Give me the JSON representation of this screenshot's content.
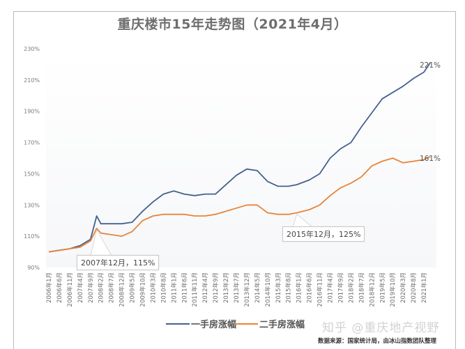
{
  "title": "重庆楼市15年走势图（2021年4月）",
  "colors": {
    "new_home": "#44618f",
    "second_hand": "#e8843a",
    "grid": "#eeeeee",
    "frame": "#b8b8b8"
  },
  "legend": {
    "new_home_label": "一手房涨幅",
    "second_hand_label": "二手房涨幅"
  },
  "annotations": {
    "peak_2007": "2007年12月，115%",
    "low_2015": "2015年12月，125%",
    "end_new_home": "221%",
    "end_second_hand": "161%"
  },
  "watermark": "知乎 @重庆地产视野",
  "source": "数据来源：国家统计局，由冰山指数团队整理",
  "chart_data": {
    "type": "line",
    "title": "重庆楼市15年走势图（2021年4月）",
    "xlabel": "",
    "ylabel": "",
    "ylim": [
      90,
      230
    ],
    "yticks": [
      "90%",
      "110%",
      "130%",
      "150%",
      "170%",
      "190%",
      "210%",
      "230%"
    ],
    "grid": false,
    "legend_position": "bottom",
    "x_tick_labels": [
      "2006年1月",
      "2006年6月",
      "2006年11月",
      "2007年4月",
      "2007年9月",
      "2008年2月",
      "2008年7月",
      "2008年12月",
      "2009年5月",
      "2009年10月",
      "2010年3月",
      "2010年8月",
      "2011年1月",
      "2011年6月",
      "2011年11月",
      "2012年4月",
      "2012年9月",
      "2013年2月",
      "2013年7月",
      "2013年12月",
      "2014年5月",
      "2014年10月",
      "2015年3月",
      "2015年8月",
      "2016年1月",
      "2016年6月",
      "2016年11月",
      "2017年4月",
      "2017年9月",
      "2018年2月",
      "2018年7月",
      "2018年12月",
      "2019年5月",
      "2019年10月",
      "2020年3月",
      "2020年8月",
      "2021年1月"
    ],
    "x": [
      "2006-01",
      "2006-06",
      "2006-11",
      "2007-04",
      "2007-09",
      "2007-12",
      "2008-02",
      "2008-07",
      "2008-12",
      "2009-05",
      "2009-10",
      "2010-03",
      "2010-08",
      "2011-01",
      "2011-06",
      "2011-11",
      "2012-04",
      "2012-09",
      "2013-02",
      "2013-07",
      "2013-12",
      "2014-05",
      "2014-10",
      "2015-03",
      "2015-08",
      "2015-12",
      "2016-06",
      "2016-11",
      "2017-04",
      "2017-09",
      "2018-02",
      "2018-07",
      "2018-12",
      "2019-05",
      "2019-10",
      "2020-03",
      "2020-08",
      "2021-01",
      "2021-04"
    ],
    "series": [
      {
        "name": "一手房涨幅",
        "values": [
          100,
          101,
          102,
          104,
          108,
          123,
          118,
          118,
          118,
          119,
          126,
          132,
          137,
          139,
          137,
          136,
          137,
          137,
          143,
          149,
          153,
          152,
          145,
          142,
          142,
          143,
          146,
          150,
          160,
          166,
          170,
          180,
          189,
          198,
          202,
          206,
          211,
          215,
          221
        ]
      },
      {
        "name": "二手房涨幅",
        "values": [
          100,
          101,
          102,
          103,
          107,
          115,
          112,
          111,
          110,
          113,
          120,
          123,
          124,
          124,
          124,
          123,
          123,
          124,
          126,
          128,
          130,
          130,
          125,
          124,
          124,
          125,
          127,
          130,
          136,
          141,
          144,
          148,
          155,
          158,
          160,
          157,
          158,
          159,
          161
        ]
      }
    ],
    "annotations": [
      {
        "text": "2007年12月，115%",
        "x": "2007-12",
        "series": "二手房涨幅",
        "value": 115
      },
      {
        "text": "2015年12月，125%",
        "x": "2015-12",
        "series": "二手房涨幅",
        "value": 125
      },
      {
        "text": "221%",
        "x": "2021-04",
        "series": "一手房涨幅",
        "value": 221
      },
      {
        "text": "161%",
        "x": "2021-04",
        "series": "二手房涨幅",
        "value": 161
      }
    ]
  }
}
